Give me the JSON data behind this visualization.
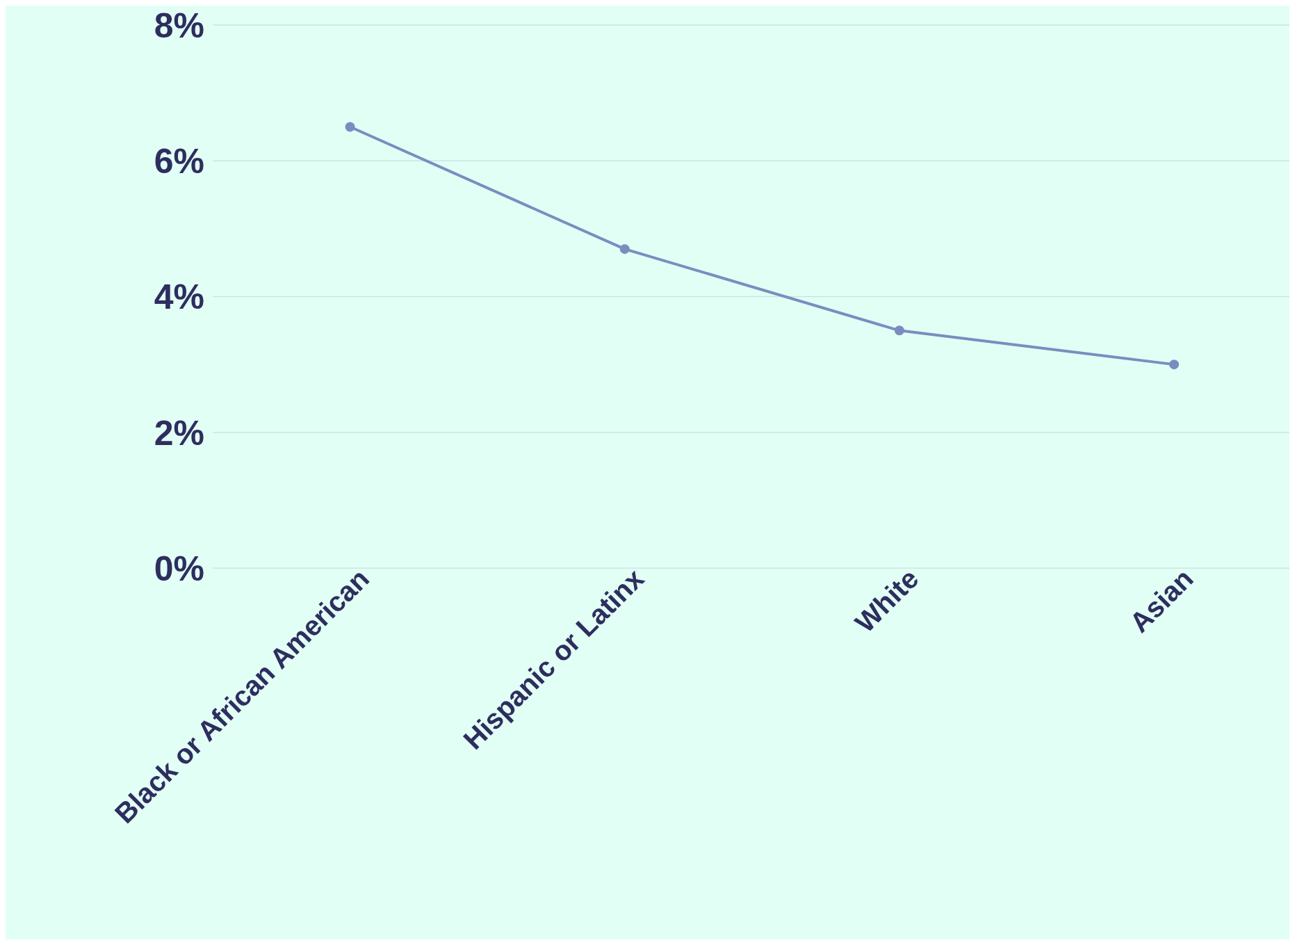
{
  "chart_data": {
    "type": "line",
    "categories": [
      "Black or African American",
      "Hispanic or Latinx",
      "White",
      "Asian"
    ],
    "series": [
      {
        "color": "#7b8dbf",
        "values": [
          6.5,
          4.7,
          3.5,
          3.0
        ]
      }
    ],
    "ylim": [
      0,
      8
    ],
    "yticks": [
      {
        "value": 0,
        "label": "0%"
      },
      {
        "value": 2,
        "label": "2%"
      },
      {
        "value": 4,
        "label": "4%"
      },
      {
        "value": 6,
        "label": "6%"
      },
      {
        "value": 8,
        "label": "8%"
      }
    ],
    "grid": "y",
    "marker": "circle",
    "line_style": "solid"
  }
}
